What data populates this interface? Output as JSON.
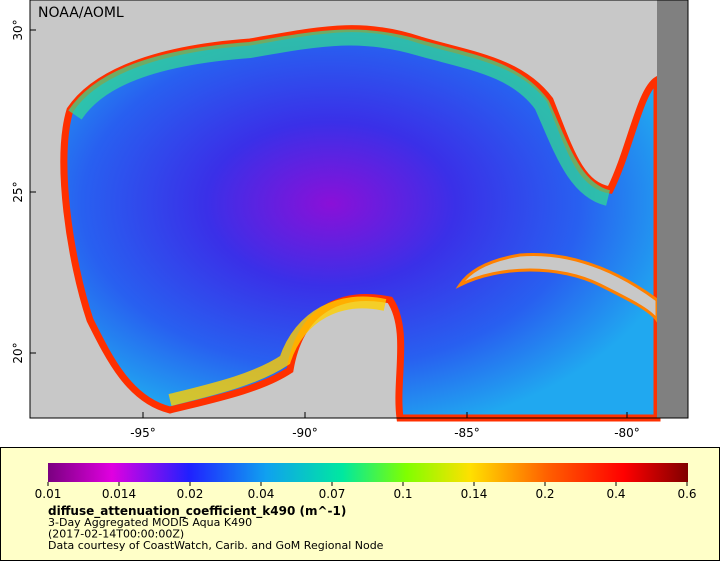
{
  "map": {
    "credit": "NOAA/AOML",
    "latitude_labels": [
      "30°",
      "25°",
      "20°"
    ],
    "longitude_labels": [
      "-95°",
      "-90°",
      "-85°",
      "-80°"
    ]
  },
  "legend": {
    "colorbar_labels": [
      "0.01",
      "0.014",
      "0.02",
      "0.04",
      "0.07",
      "0.1",
      "0.14",
      "0.2",
      "0.4",
      "0.6"
    ],
    "variable": "diffuse_attenuation_coefficient_k490 (m^-1)",
    "lines": [
      "3-Day Aggregated MODIS Aqua K490",
      "(2017-02-14T00:00:00Z)",
      "Data courtesy of CoastWatch, Carib. and GoM Regional Node"
    ]
  }
}
